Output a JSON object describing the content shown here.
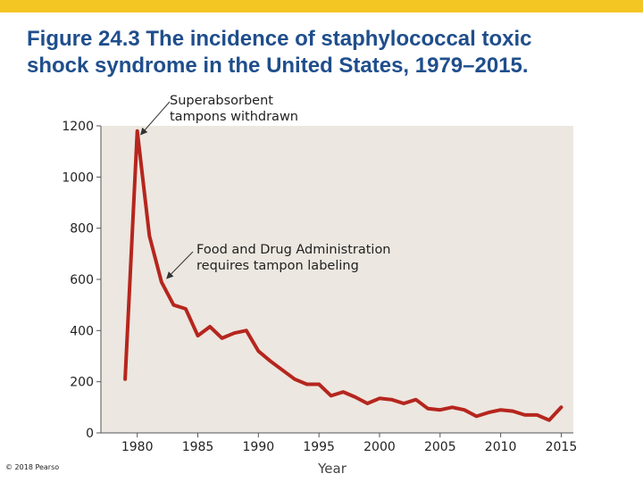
{
  "header": {
    "title_line1": "Figure 24.3  The incidence of staphylococcal toxic",
    "title_line2": "shock syndrome in the United States, 1979–2015.",
    "accent_bar_color": "#f3c623",
    "title_color": "#1f4e8c"
  },
  "footer": {
    "copyright": "© 2018 Pearso"
  },
  "chart_data": {
    "type": "line",
    "title": "",
    "xlabel": "Year",
    "ylabel": "",
    "xlim": [
      1977,
      2016
    ],
    "ylim": [
      0,
      1200
    ],
    "x_ticks": [
      1980,
      1985,
      1990,
      1995,
      2000,
      2005,
      2010,
      2015
    ],
    "y_ticks": [
      0,
      200,
      400,
      600,
      800,
      1000,
      1200
    ],
    "grid": false,
    "background_color": "#ece7e0",
    "line_color": "#b5261e",
    "series": [
      {
        "name": "",
        "x": [
          1979,
          1980,
          1981,
          1982,
          1983,
          1984,
          1985,
          1986,
          1987,
          1988,
          1989,
          1990,
          1991,
          1992,
          1993,
          1994,
          1995,
          1996,
          1997,
          1998,
          1999,
          2000,
          2001,
          2002,
          2003,
          2004,
          2005,
          2006,
          2007,
          2008,
          2009,
          2010,
          2011,
          2012,
          2013,
          2014,
          2015
        ],
        "y": [
          210,
          1180,
          770,
          590,
          500,
          485,
          380,
          415,
          370,
          390,
          400,
          320,
          280,
          245,
          210,
          190,
          190,
          145,
          160,
          140,
          115,
          135,
          130,
          115,
          130,
          95,
          90,
          100,
          90,
          65,
          80,
          90,
          85,
          70,
          70,
          50,
          100
        ]
      }
    ],
    "annotations": [
      {
        "lines": [
          "Superabsorbent",
          "tampons withdrawn"
        ],
        "x": 1980,
        "y": 1180
      },
      {
        "lines": [
          "Food and Drug Administration",
          "requires tampon labeling"
        ],
        "x": 1982,
        "y": 590
      }
    ]
  }
}
